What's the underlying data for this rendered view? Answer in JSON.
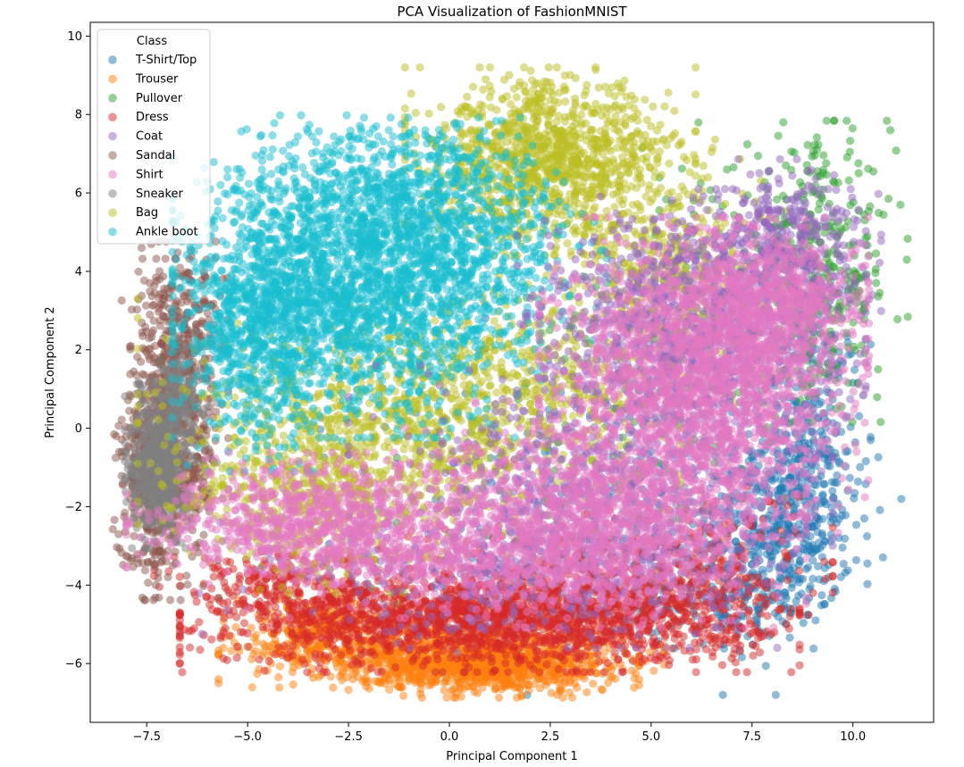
{
  "chart_data": {
    "type": "scatter",
    "title": "PCA Visualization of FashionMNIST",
    "xlabel": "Principal Component 1",
    "ylabel": "Principal Component 2",
    "xlim": [
      -8.9,
      12.0
    ],
    "ylim": [
      -7.5,
      10.35
    ],
    "xticks": [
      -7.5,
      -5.0,
      -2.5,
      0.0,
      2.5,
      5.0,
      7.5,
      10.0
    ],
    "xtick_labels": [
      "−7.5",
      "−5.0",
      "−2.5",
      "0.0",
      "2.5",
      "5.0",
      "7.5",
      "10.0"
    ],
    "yticks": [
      -6,
      -4,
      -2,
      0,
      2,
      4,
      6,
      8,
      10
    ],
    "ytick_labels": [
      "−6",
      "−4",
      "−2",
      "0",
      "2",
      "4",
      "6",
      "8",
      "10"
    ],
    "grid": false,
    "marker_alpha": 0.5,
    "legend": {
      "title": "Class",
      "placement": "top-left"
    },
    "draw_order": [
      0,
      1,
      2,
      3,
      5,
      7,
      8,
      9,
      4,
      6
    ],
    "series": [
      {
        "name": "T-Shirt/Top",
        "color": "#1f77b4",
        "clusters": [
          {
            "n": 420,
            "center": [
              8.2,
              -2.5
            ],
            "spread": [
              0.9,
              1.3
            ]
          },
          {
            "n": 220,
            "center": [
              9.0,
              0.0
            ],
            "spread": [
              0.6,
              1.6
            ]
          },
          {
            "n": 250,
            "center": [
              4.0,
              -2.0
            ],
            "spread": [
              3.0,
              2.0
            ]
          },
          {
            "n": 120,
            "center": [
              7.0,
              -4.4
            ],
            "spread": [
              1.0,
              0.5
            ]
          }
        ]
      },
      {
        "name": "Trouser",
        "color": "#ff7f0e",
        "clusters": [
          {
            "n": 850,
            "center": [
              -0.2,
              -5.7
            ],
            "spread": [
              2.3,
              0.38
            ]
          },
          {
            "n": 600,
            "center": [
              1.1,
              -6.15
            ],
            "spread": [
              1.5,
              0.3
            ]
          },
          {
            "n": 220,
            "center": [
              -3.2,
              -5.0
            ],
            "spread": [
              1.0,
              0.35
            ]
          }
        ]
      },
      {
        "name": "Pullover",
        "color": "#2ca02c",
        "clusters": [
          {
            "n": 320,
            "center": [
              9.2,
              4.0
            ],
            "spread": [
              0.9,
              1.6
            ]
          },
          {
            "n": 170,
            "center": [
              6.5,
              3.0
            ],
            "spread": [
              2.0,
              2.0
            ]
          },
          {
            "n": 60,
            "center": [
              3.5,
              -1.0
            ],
            "spread": [
              2.0,
              1.5
            ]
          }
        ]
      },
      {
        "name": "Dress",
        "color": "#d62728",
        "clusters": [
          {
            "n": 1600,
            "center": [
              1.0,
              -4.9
            ],
            "spread": [
              3.2,
              0.55
            ]
          },
          {
            "n": 500,
            "center": [
              3.5,
              -4.0
            ],
            "spread": [
              2.5,
              0.8
            ]
          },
          {
            "n": 220,
            "center": [
              -4.2,
              -4.0
            ],
            "spread": [
              1.3,
              0.5
            ]
          },
          {
            "n": 150,
            "center": [
              6.5,
              -3.5
            ],
            "spread": [
              1.0,
              1.0
            ]
          }
        ]
      },
      {
        "name": "Coat",
        "color": "#9467bd",
        "clusters": [
          {
            "n": 1100,
            "center": [
              6.0,
              2.5
            ],
            "spread": [
              1.8,
              1.5
            ]
          },
          {
            "n": 700,
            "center": [
              3.5,
              -2.0
            ],
            "spread": [
              2.5,
              1.5
            ]
          },
          {
            "n": 380,
            "center": [
              8.3,
              4.7
            ],
            "spread": [
              1.0,
              0.9
            ]
          },
          {
            "n": 260,
            "center": [
              1.0,
              -3.8
            ],
            "spread": [
              3.0,
              0.8
            ]
          }
        ]
      },
      {
        "name": "Sandal",
        "color": "#8c564b",
        "clusters": [
          {
            "n": 600,
            "center": [
              -6.8,
              0.0
            ],
            "spread": [
              0.55,
              1.8
            ]
          },
          {
            "n": 220,
            "center": [
              -7.5,
              -1.5
            ],
            "spread": [
              0.35,
              1.2
            ]
          },
          {
            "n": 160,
            "center": [
              -6.6,
              2.6
            ],
            "spread": [
              0.5,
              0.9
            ]
          }
        ]
      },
      {
        "name": "Shirt",
        "color": "#e377c2",
        "clusters": [
          {
            "n": 1900,
            "center": [
              6.3,
              1.3
            ],
            "spread": [
              1.7,
              1.7
            ]
          },
          {
            "n": 1300,
            "center": [
              3.8,
              -2.2
            ],
            "spread": [
              2.1,
              1.2
            ]
          },
          {
            "n": 850,
            "center": [
              -3.2,
              -2.3
            ],
            "spread": [
              2.0,
              0.7
            ]
          },
          {
            "n": 500,
            "center": [
              8.0,
              3.2
            ],
            "spread": [
              1.0,
              0.8
            ]
          },
          {
            "n": 450,
            "center": [
              1.0,
              -3.4
            ],
            "spread": [
              2.5,
              0.6
            ]
          }
        ]
      },
      {
        "name": "Sneaker",
        "color": "#7f7f7f",
        "clusters": [
          {
            "n": 650,
            "center": [
              -7.2,
              -0.9
            ],
            "spread": [
              0.35,
              0.9
            ]
          },
          {
            "n": 150,
            "center": [
              -6.6,
              0.8
            ],
            "spread": [
              0.35,
              0.7
            ]
          }
        ]
      },
      {
        "name": "Bag",
        "color": "#bcbd22",
        "clusters": [
          {
            "n": 1100,
            "center": [
              2.5,
              6.8
            ],
            "spread": [
              1.5,
              1.0
            ]
          },
          {
            "n": 1000,
            "center": [
              -1.0,
              0.0
            ],
            "spread": [
              2.8,
              1.4
            ]
          },
          {
            "n": 400,
            "center": [
              5.5,
              4.0
            ],
            "spread": [
              1.2,
              1.4
            ]
          },
          {
            "n": 350,
            "center": [
              -3.5,
              -1.8
            ],
            "spread": [
              1.5,
              1.0
            ]
          },
          {
            "n": 250,
            "center": [
              1.5,
              1.5
            ],
            "spread": [
              2.0,
              1.0
            ]
          }
        ]
      },
      {
        "name": "Ankle boot",
        "color": "#17becf",
        "clusters": [
          {
            "n": 2000,
            "center": [
              -2.3,
              3.6
            ],
            "spread": [
              1.9,
              1.6
            ]
          },
          {
            "n": 700,
            "center": [
              -4.7,
              2.5
            ],
            "spread": [
              0.9,
              1.5
            ]
          },
          {
            "n": 600,
            "center": [
              0.3,
              4.8
            ],
            "spread": [
              1.5,
              1.3
            ]
          },
          {
            "n": 300,
            "center": [
              -2.0,
              6.3
            ],
            "spread": [
              1.7,
              0.7
            ]
          }
        ]
      }
    ]
  }
}
